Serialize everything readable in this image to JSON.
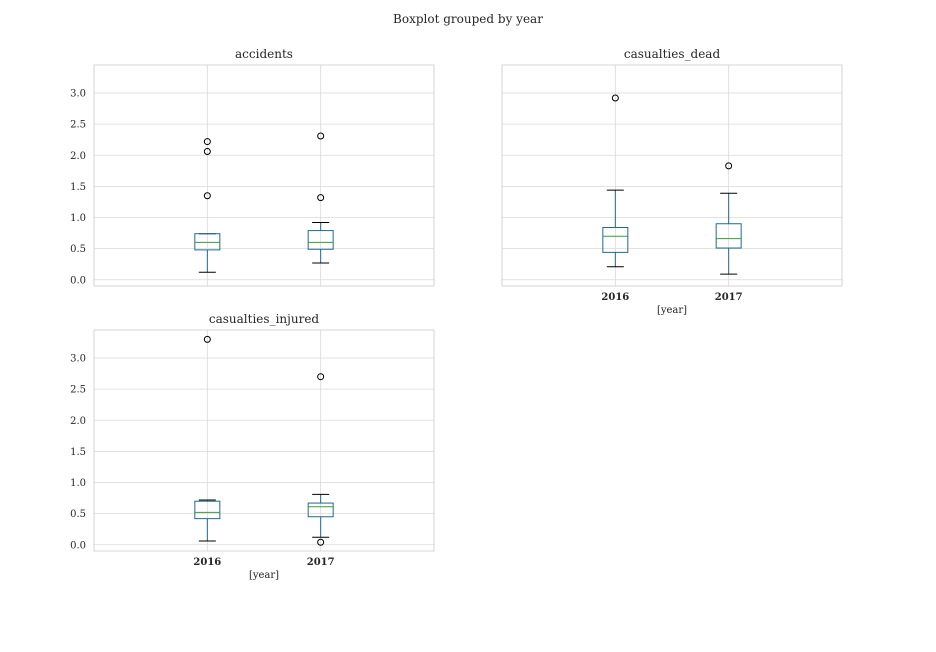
{
  "figure": {
    "suptitle": "Boxplot grouped by year",
    "xlabel": "[year]"
  },
  "chart_data": [
    {
      "type": "boxplot",
      "title": "accidents",
      "categories": [
        "2016",
        "2017"
      ],
      "ylim": [
        -0.1,
        3.45
      ],
      "yticks": [
        0.0,
        0.5,
        1.0,
        1.5,
        2.0,
        2.5,
        3.0
      ],
      "ytick_labels": [
        "0.0",
        "0.5",
        "1.0",
        "1.5",
        "2.0",
        "2.5",
        "3.0"
      ],
      "show_xticks": false,
      "xlabel": "",
      "grid": true,
      "boxes": [
        {
          "whisker_low": 0.12,
          "q1": 0.48,
          "median": 0.6,
          "q3": 0.74,
          "whisker_high": 0.74,
          "fliers": [
            1.35,
            2.06,
            2.22
          ]
        },
        {
          "whisker_low": 0.27,
          "q1": 0.49,
          "median": 0.6,
          "q3": 0.79,
          "whisker_high": 0.92,
          "fliers": [
            1.32,
            2.31
          ]
        }
      ]
    },
    {
      "type": "boxplot",
      "title": "casualties_dead",
      "categories": [
        "2016",
        "2017"
      ],
      "ylim": [
        -0.1,
        3.45
      ],
      "yticks": [
        0.0,
        0.5,
        1.0,
        1.5,
        2.0,
        2.5,
        3.0
      ],
      "ytick_labels": [],
      "show_xticks": true,
      "xlabel": "[year]",
      "grid": true,
      "boxes": [
        {
          "whisker_low": 0.21,
          "q1": 0.44,
          "median": 0.7,
          "q3": 0.84,
          "whisker_high": 1.44,
          "fliers": [
            2.92
          ]
        },
        {
          "whisker_low": 0.09,
          "q1": 0.51,
          "median": 0.66,
          "q3": 0.9,
          "whisker_high": 1.39,
          "fliers": [
            1.83
          ]
        }
      ]
    },
    {
      "type": "boxplot",
      "title": "casualties_injured",
      "categories": [
        "2016",
        "2017"
      ],
      "ylim": [
        -0.1,
        3.45
      ],
      "yticks": [
        0.0,
        0.5,
        1.0,
        1.5,
        2.0,
        2.5,
        3.0
      ],
      "ytick_labels": [
        "0.0",
        "0.5",
        "1.0",
        "1.5",
        "2.0",
        "2.5",
        "3.0"
      ],
      "show_xticks": true,
      "xlabel": "[year]",
      "grid": true,
      "boxes": [
        {
          "whisker_low": 0.06,
          "q1": 0.42,
          "median": 0.52,
          "q3": 0.7,
          "whisker_high": 0.72,
          "fliers": [
            3.3
          ]
        },
        {
          "whisker_low": 0.12,
          "q1": 0.45,
          "median": 0.61,
          "q3": 0.67,
          "whisker_high": 0.81,
          "fliers": [
            0.04,
            2.7
          ]
        }
      ]
    }
  ],
  "colors": {
    "box": "#1f6a8e",
    "median": "#3a9a3a",
    "whisker_cap": "#000000",
    "grid": "#d9d9d9",
    "frame": "#cccccc",
    "flier_edge": "#000000"
  }
}
